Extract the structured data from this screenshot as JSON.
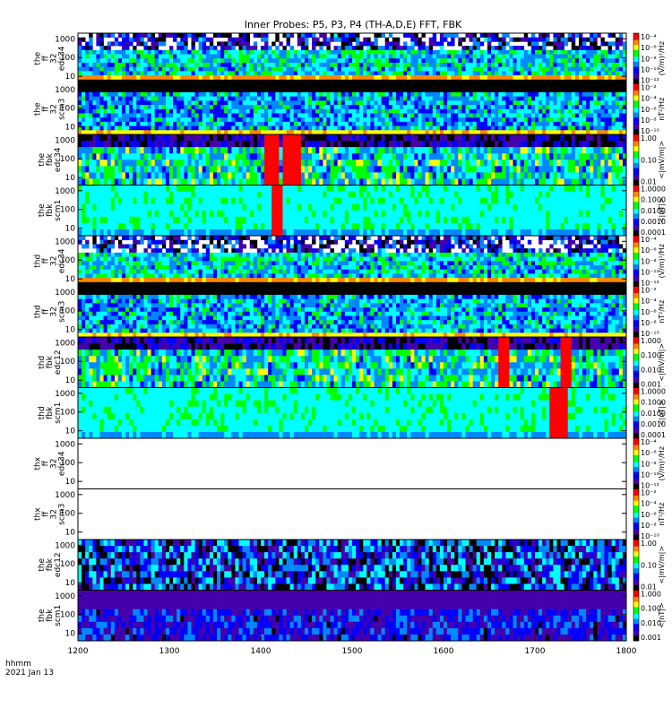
{
  "chart_data": {
    "type": "heatmap",
    "title": "Inner Probes: P5, P3, P4 (TH-A,D,E) FFT, FBK",
    "x_range": [
      1200,
      1800
    ],
    "x_ticks": [
      "1200",
      "1300",
      "1400",
      "1500",
      "1600",
      "1700",
      "1800"
    ],
    "x_label": [
      "hhmm",
      "2021 Jan 13"
    ],
    "panels": [
      {
        "name": "the-ff32-edc34",
        "ylabel": [
          "the",
          "ff",
          "32",
          "edc34"
        ],
        "yticks": [
          "10",
          "100",
          "1000"
        ],
        "cb_label": "(V/m)²/Hz",
        "cb_ticks": [
          "10⁻⁴",
          "10⁻⁶",
          "10⁻⁸",
          "10⁻¹⁰",
          "10⁻¹²"
        ],
        "pattern": "ffe",
        "state": "data"
      },
      {
        "name": "the-ff32-scm3",
        "ylabel": [
          "the",
          "ff",
          "32",
          "scm3"
        ],
        "yticks": [
          "10",
          "100",
          "1000"
        ],
        "cb_label": "nT²/Hz",
        "cb_ticks": [
          "10⁻²",
          "10⁻⁴",
          "10⁻⁶",
          "10⁻⁸",
          "10⁻¹⁰"
        ],
        "pattern": "ffs",
        "state": "data"
      },
      {
        "name": "the-fbk-edc34",
        "ylabel": [
          "the",
          "fbk",
          "edc34"
        ],
        "yticks": [
          "10",
          "100",
          "1000"
        ],
        "cb_label": "<|mV/m|>",
        "cb_ticks": [
          "1.00",
          "0.10",
          "0.01"
        ],
        "pattern": "fbe",
        "state": "data",
        "bursts": [
          [
            1405,
            1420
          ],
          [
            1425,
            1445
          ]
        ]
      },
      {
        "name": "the-fbk-scm1",
        "ylabel": [
          "the",
          "fbk",
          "scm1"
        ],
        "yticks": [
          "10",
          "100",
          "1000"
        ],
        "cb_label": "<|nT|>",
        "cb_ticks": [
          "1.0000",
          "0.1000",
          "0.0100",
          "0.0010",
          "0.0001"
        ],
        "pattern": "fbs",
        "state": "data",
        "bursts": [
          [
            1412,
            1425
          ]
        ]
      },
      {
        "name": "thd-ff32-edc34",
        "ylabel": [
          "thd",
          "ff",
          "32",
          "edc34"
        ],
        "yticks": [
          "10",
          "100",
          "1000"
        ],
        "cb_label": "(V/m)²/Hz",
        "cb_ticks": [
          "10⁻⁴",
          "10⁻⁶",
          "10⁻⁸",
          "10⁻¹⁰",
          "10⁻¹²"
        ],
        "pattern": "ffe",
        "state": "data"
      },
      {
        "name": "thd-ff32-scm3",
        "ylabel": [
          "thd",
          "ff",
          "32",
          "scm3"
        ],
        "yticks": [
          "10",
          "100",
          "1000"
        ],
        "cb_label": "nT²/Hz",
        "cb_ticks": [
          "10⁻²",
          "10⁻⁴",
          "10⁻⁶",
          "10⁻⁸",
          "10⁻¹⁰"
        ],
        "pattern": "ffs",
        "state": "data"
      },
      {
        "name": "thd-fbk-edc12",
        "ylabel": [
          "thd",
          "fbk",
          "edc12"
        ],
        "yticks": [
          "10",
          "100",
          "1000"
        ],
        "cb_label": "<|mV/m|>",
        "cb_ticks": [
          "1.000",
          "0.100",
          "0.010",
          "0.001"
        ],
        "pattern": "fbe",
        "state": "data",
        "bursts": [
          [
            1728,
            1740
          ],
          [
            1660,
            1672
          ]
        ]
      },
      {
        "name": "thd-fbk-scm1",
        "ylabel": [
          "thd",
          "fbk",
          "scm1"
        ],
        "yticks": [
          "10",
          "100",
          "1000"
        ],
        "cb_label": "<|nT|>",
        "cb_ticks": [
          "1.0000",
          "0.1000",
          "0.0100",
          "0.0010",
          "0.0001"
        ],
        "pattern": "fbs",
        "state": "data",
        "bursts": [
          [
            1718,
            1735
          ]
        ]
      },
      {
        "name": "thx-ff32-edc34",
        "ylabel": [
          "thx",
          "ff",
          "32",
          "edc34"
        ],
        "yticks": [
          "10",
          "100",
          "1000"
        ],
        "cb_label": "(V/m)²/Hz",
        "cb_ticks": [
          "10⁻⁴",
          "10⁻⁶",
          "10⁻⁸",
          "10⁻¹⁰",
          "10⁻¹²"
        ],
        "pattern": "none",
        "state": "empty"
      },
      {
        "name": "thx-ff32-scm3",
        "ylabel": [
          "thx",
          "ff",
          "32",
          "scm3"
        ],
        "yticks": [
          "10",
          "100",
          "1000"
        ],
        "cb_label": "nT²/Hz",
        "cb_ticks": [
          "10⁻²",
          "10⁻⁴",
          "10⁻⁶",
          "10⁻⁸",
          "10⁻¹⁰"
        ],
        "pattern": "none",
        "state": "empty"
      },
      {
        "name": "the2-fbk-edc12",
        "ylabel": [
          "the",
          "fbk",
          "edc12"
        ],
        "yticks": [
          "10",
          "100",
          "1000"
        ],
        "cb_label": "<|mV/m|>",
        "cb_ticks": [
          "1.00",
          "0.10",
          "0.01"
        ],
        "pattern": "fbe2",
        "state": "data"
      },
      {
        "name": "the2-fbk-scm1",
        "ylabel": [
          "the",
          "fbk",
          "scm1"
        ],
        "yticks": [
          "10",
          "100",
          "1000"
        ],
        "cb_label": "<|nT|>",
        "cb_ticks": [
          "1.000",
          "0.100",
          "0.010",
          "0.001"
        ],
        "pattern": "fbs2",
        "state": "data"
      }
    ],
    "y_scale": "log",
    "y_range_hz": [
      4,
      2000
    ],
    "colormap": [
      "#ff0000",
      "#ff8800",
      "#ffff00",
      "#00ff00",
      "#00ffff",
      "#0088ff",
      "#0000ff",
      "#4400aa",
      "#000000"
    ]
  }
}
